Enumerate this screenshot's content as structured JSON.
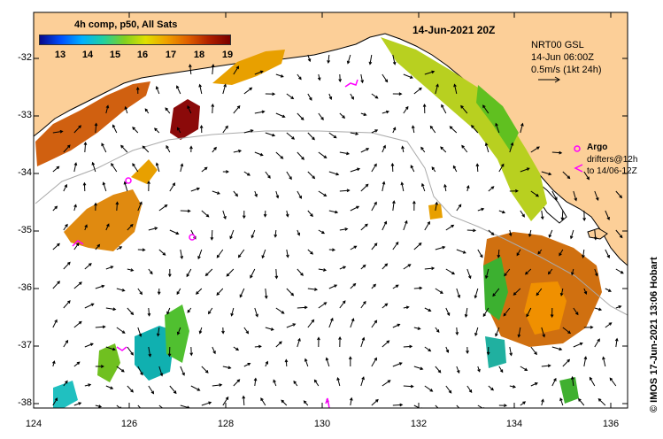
{
  "map": {
    "title": "14-Jun-2021 20Z",
    "colorbar": {
      "title": "4h comp, p50, All Sats",
      "ticks": [
        "13",
        "14",
        "15",
        "16",
        "17",
        "18",
        "19"
      ],
      "colors": [
        "#08088a",
        "#0050ff",
        "#00b0ff",
        "#20d0a0",
        "#80d020",
        "#e0e000",
        "#f0a000",
        "#e06000",
        "#b02000",
        "#7a0000"
      ]
    },
    "info": {
      "line1": "NRT00 GSL",
      "line2": "14-Jun 06:00Z",
      "line3": "0.5m/s (1kt 24h)"
    },
    "legend": {
      "argo": "Argo",
      "drifters_line1": "drifters@12h",
      "drifters_line2": "to 14/06-12Z"
    },
    "credit": "© IMOS 17-Jun-2021 13:06 Hobart",
    "x_ticks": [
      "124",
      "126",
      "128",
      "130",
      "132",
      "134",
      "136"
    ],
    "y_ticks": [
      "-32",
      "-33",
      "-34",
      "-35",
      "-36",
      "-37",
      "-38"
    ],
    "land_color": "#fccf98",
    "argo_color": "#ff00ff"
  }
}
